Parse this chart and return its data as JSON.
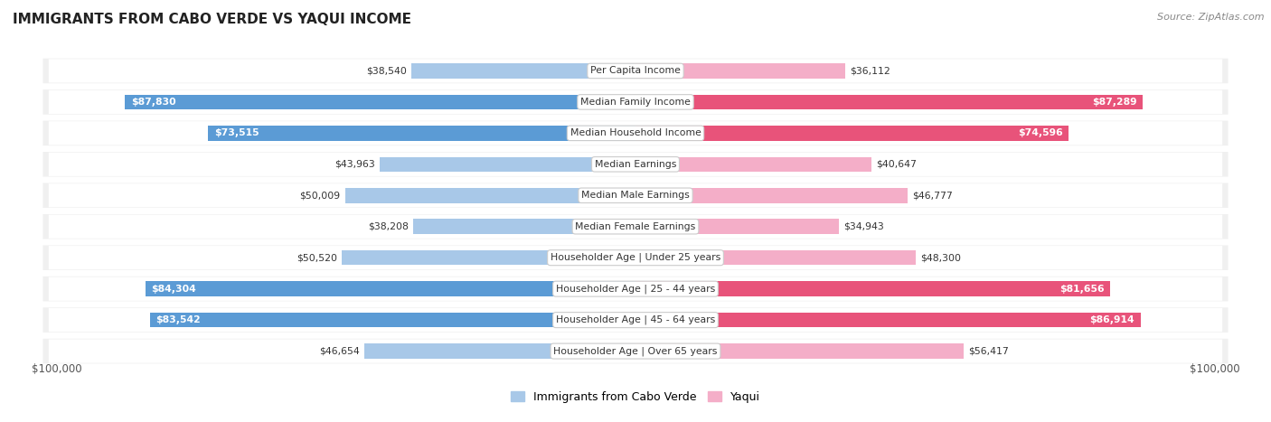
{
  "title": "IMMIGRANTS FROM CABO VERDE VS YAQUI INCOME",
  "source": "Source: ZipAtlas.com",
  "categories": [
    "Per Capita Income",
    "Median Family Income",
    "Median Household Income",
    "Median Earnings",
    "Median Male Earnings",
    "Median Female Earnings",
    "Householder Age | Under 25 years",
    "Householder Age | 25 - 44 years",
    "Householder Age | 45 - 64 years",
    "Householder Age | Over 65 years"
  ],
  "cabo_verde": [
    38540,
    87830,
    73515,
    43963,
    50009,
    38208,
    50520,
    84304,
    83542,
    46654
  ],
  "yaqui": [
    36112,
    87289,
    74596,
    40647,
    46777,
    34943,
    48300,
    81656,
    86914,
    56417
  ],
  "max_val": 100000,
  "cabo_verde_color_light": "#a8c8e8",
  "cabo_verde_color_dark": "#5b9bd5",
  "yaqui_color_light": "#f4aec8",
  "yaqui_color_dark": "#e8537a",
  "bg_color": "#ffffff",
  "row_bg": "#f0f0f0",
  "threshold_for_dark_color": 60000,
  "threshold_for_white_label": 60000,
  "xlabel_left": "$100,000",
  "xlabel_right": "$100,000",
  "legend_cabo": "Immigrants from Cabo Verde",
  "legend_yaqui": "Yaqui"
}
